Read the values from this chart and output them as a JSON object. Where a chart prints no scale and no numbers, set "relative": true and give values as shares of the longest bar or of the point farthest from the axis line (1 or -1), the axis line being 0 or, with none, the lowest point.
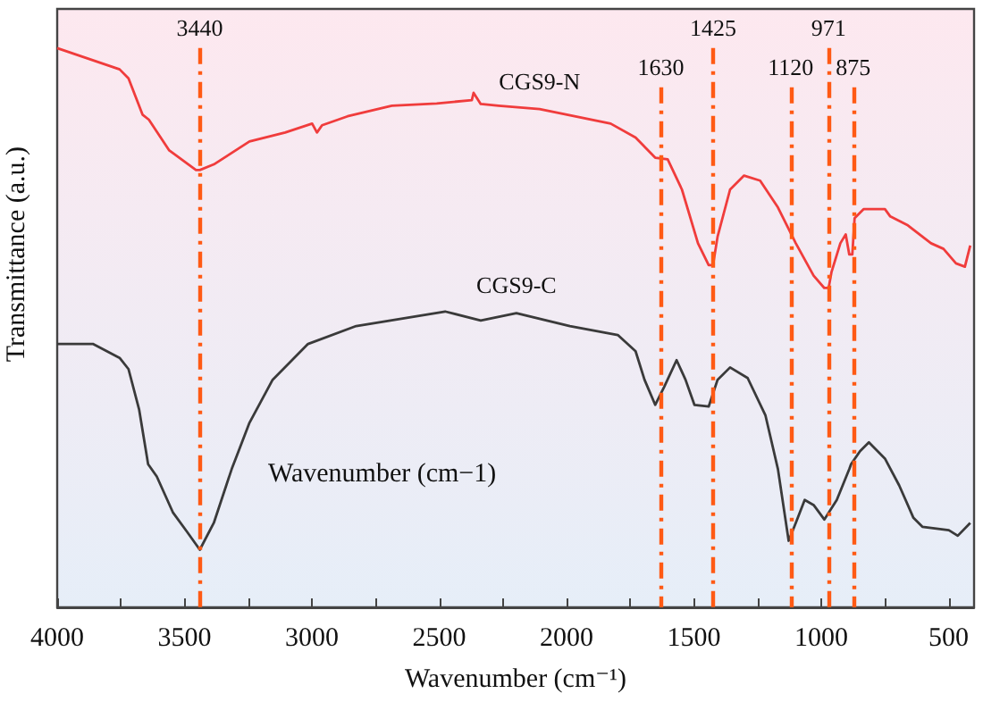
{
  "chart_data": {
    "type": "line",
    "relative": true,
    "xlabel": "Wavenumber (cm⁻¹)",
    "ylabel": "Transmittance (a.u.)",
    "xlim": [
      4000,
      400
    ],
    "xticks": [
      4000,
      {
        "value": 3750,
        "label": null
      },
      3500,
      {
        "value": 3250,
        "label": null
      },
      3000,
      {
        "value": 2750,
        "label": null
      },
      2500,
      {
        "value": 2250,
        "label": null
      },
      2000,
      {
        "value": 1750,
        "label": null
      },
      1500,
      {
        "value": 1250,
        "label": null
      },
      1000,
      {
        "value": 750,
        "label": null
      },
      500
    ],
    "tick_labels": "x",
    "grid": false,
    "legend": false,
    "marker": "none",
    "line_style": "solid",
    "annotations": [
      "Wavenumber (cm−1)"
    ],
    "ref_lines": [
      {
        "axis": "x",
        "value": 3440,
        "label": "3440",
        "color": "#ff5a14",
        "line_style": "dashed"
      },
      {
        "axis": "x",
        "value": 1630,
        "label": "1630",
        "color": "#ff5a14",
        "line_style": "dashed"
      },
      {
        "axis": "x",
        "value": 1425,
        "label": "1425",
        "color": "#ff5a14",
        "line_style": "dashed"
      },
      {
        "axis": "x",
        "value": 1120,
        "label": "1120",
        "color": "#ff5a14",
        "line_style": "dashed"
      },
      {
        "axis": "x",
        "value": 971,
        "label": "971",
        "color": "#ff5a14",
        "line_style": "dashed"
      },
      {
        "axis": "x",
        "value": 875,
        "label": "875",
        "color": "#ff5a14",
        "line_style": "dashed"
      }
    ],
    "series": [
      {
        "name": "CGS9-N",
        "color": "#f03c3c",
        "x": [
          4000,
          3755,
          3720,
          3665,
          3640,
          3560,
          3455,
          3440,
          3385,
          3245,
          3105,
          2999,
          2980,
          2960,
          2860,
          2686,
          2510,
          2372,
          2365,
          2337,
          2267,
          2106,
          1827,
          1729,
          1652,
          1603,
          1547,
          1484,
          1442,
          1425,
          1407,
          1358,
          1303,
          1240,
          1170,
          1100,
          1030,
          988,
          971,
          960,
          925,
          904,
          890,
          878,
          869,
          834,
          750,
          729,
          660,
          569,
          520,
          471,
          436,
          415
        ],
        "values": [
          1.0,
          0.962,
          0.946,
          0.881,
          0.872,
          0.817,
          0.782,
          0.782,
          0.792,
          0.833,
          0.849,
          0.865,
          0.849,
          0.862,
          0.878,
          0.897,
          0.901,
          0.907,
          0.92,
          0.9,
          0.897,
          0.891,
          0.865,
          0.84,
          0.804,
          0.801,
          0.747,
          0.651,
          0.612,
          0.612,
          0.663,
          0.747,
          0.772,
          0.763,
          0.715,
          0.651,
          0.593,
          0.571,
          0.571,
          0.599,
          0.651,
          0.667,
          0.631,
          0.631,
          0.696,
          0.712,
          0.712,
          0.699,
          0.683,
          0.651,
          0.641,
          0.615,
          0.609,
          0.647
        ]
      },
      {
        "name": "CGS9-C",
        "color": "#3a3a3a",
        "x": [
          4000,
          3860,
          3755,
          3720,
          3678,
          3643,
          3609,
          3546,
          3490,
          3440,
          3385,
          3315,
          3245,
          3154,
          3015,
          2826,
          2477,
          2337,
          2197,
          1987,
          1799,
          1729,
          1694,
          1652,
          1617,
          1568,
          1533,
          1498,
          1442,
          1407,
          1358,
          1289,
          1219,
          1170,
          1128,
          1100,
          1065,
          1030,
          988,
          939,
          890,
          883,
          848,
          813,
          750,
          694,
          638,
          603,
          499,
          464,
          415
        ],
        "values": [
          0.471,
          0.471,
          0.446,
          0.426,
          0.353,
          0.256,
          0.234,
          0.17,
          0.135,
          0.103,
          0.151,
          0.247,
          0.33,
          0.407,
          0.471,
          0.503,
          0.529,
          0.513,
          0.526,
          0.503,
          0.487,
          0.458,
          0.407,
          0.362,
          0.394,
          0.442,
          0.407,
          0.362,
          0.359,
          0.407,
          0.429,
          0.41,
          0.343,
          0.247,
          0.119,
          0.151,
          0.192,
          0.183,
          0.157,
          0.192,
          0.247,
          0.256,
          0.279,
          0.295,
          0.266,
          0.218,
          0.16,
          0.144,
          0.138,
          0.128,
          0.151
        ]
      }
    ]
  }
}
